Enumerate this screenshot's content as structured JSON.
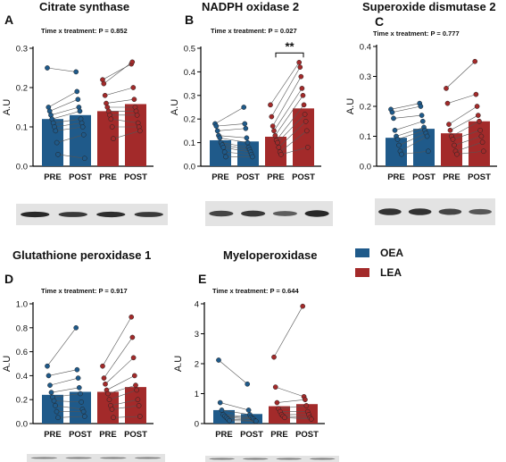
{
  "colors": {
    "OEA": "#1f5a8a",
    "LEA": "#a32a2a",
    "blot_bg": "#e3e3e3",
    "band": "#1d1d1d"
  },
  "legend": [
    {
      "key": "OEA",
      "label": "OEA"
    },
    {
      "key": "LEA",
      "label": "LEA"
    }
  ],
  "chart_data": [
    {
      "letter": "A",
      "title": "Citrate synthase",
      "stat": "Time x treatment:   P = 0.852",
      "type": "bar",
      "ylabel": "A.U",
      "ylim": [
        0,
        0.3
      ],
      "yticks": [
        "0.0",
        "0.1",
        "0.2",
        "0.3"
      ],
      "categories": [
        "PRE",
        "POST",
        "PRE",
        "POST"
      ],
      "group_of_bar": [
        "OEA",
        "OEA",
        "LEA",
        "LEA"
      ],
      "values": [
        0.12,
        0.13,
        0.14,
        0.158
      ],
      "pairs": [
        {
          "group": "OEA",
          "pre": [
            0.25,
            0.15,
            0.14,
            0.13,
            0.12,
            0.11,
            0.1,
            0.09,
            0.06,
            0.03
          ],
          "post": [
            0.24,
            0.19,
            0.17,
            0.15,
            0.14,
            0.12,
            0.11,
            0.1,
            0.08,
            0.02
          ]
        },
        {
          "group": "LEA",
          "pre": [
            0.22,
            0.21,
            0.18,
            0.16,
            0.15,
            0.14,
            0.13,
            0.12,
            0.1,
            0.07
          ],
          "post": [
            0.26,
            0.265,
            0.2,
            0.17,
            0.15,
            0.14,
            0.13,
            0.11,
            0.1,
            0.09
          ]
        }
      ],
      "annotation": null
    },
    {
      "letter": "B",
      "title": "NADPH oxidase 2",
      "stat": "Time x treatment:   P = 0.027",
      "type": "bar",
      "ylabel": "A.U",
      "ylim": [
        0,
        0.5
      ],
      "yticks": [
        "0.0",
        "0.1",
        "0.2",
        "0.3",
        "0.4",
        "0.5"
      ],
      "categories": [
        "PRE",
        "POST",
        "PRE",
        "POST"
      ],
      "group_of_bar": [
        "OEA",
        "OEA",
        "LEA",
        "LEA"
      ],
      "values": [
        0.11,
        0.105,
        0.125,
        0.245
      ],
      "pairs": [
        {
          "group": "OEA",
          "pre": [
            0.18,
            0.17,
            0.15,
            0.13,
            0.12,
            0.1,
            0.09,
            0.08,
            0.06,
            0.04
          ],
          "post": [
            0.25,
            0.18,
            0.16,
            0.12,
            0.1,
            0.08,
            0.07,
            0.06,
            0.05,
            0.04
          ]
        },
        {
          "group": "LEA",
          "pre": [
            0.26,
            0.21,
            0.17,
            0.15,
            0.13,
            0.11,
            0.1,
            0.08,
            0.06,
            0.05
          ],
          "post": [
            0.44,
            0.42,
            0.38,
            0.33,
            0.3,
            0.26,
            0.22,
            0.19,
            0.15,
            0.08
          ]
        }
      ],
      "annotation": "**"
    },
    {
      "letter": "C",
      "title": "Superoxide dismutase 2",
      "stat": "Time x treatment:   P = 0.777",
      "type": "bar",
      "ylabel": "A.U",
      "ylim": [
        0,
        0.4
      ],
      "yticks": [
        "0.0",
        "0.1",
        "0.2",
        "0.3",
        "0.4"
      ],
      "categories": [
        "PRE",
        "POST",
        "PRE",
        "POST"
      ],
      "group_of_bar": [
        "OEA",
        "OEA",
        "LEA",
        "LEA"
      ],
      "values": [
        0.095,
        0.125,
        0.11,
        0.15
      ],
      "pairs": [
        {
          "group": "OEA",
          "pre": [
            0.19,
            0.18,
            0.16,
            0.12,
            0.1,
            0.09,
            0.07,
            0.05,
            0.04
          ],
          "post": [
            0.21,
            0.2,
            0.17,
            0.15,
            0.13,
            0.12,
            0.11,
            0.1,
            0.05
          ]
        },
        {
          "group": "LEA",
          "pre": [
            0.26,
            0.21,
            0.14,
            0.12,
            0.1,
            0.09,
            0.07,
            0.05,
            0.04
          ],
          "post": [
            0.35,
            0.24,
            0.2,
            0.17,
            0.15,
            0.12,
            0.1,
            0.08,
            0.05
          ]
        }
      ],
      "annotation": null
    },
    {
      "letter": "D",
      "title": "Glutathione peroxidase 1",
      "stat": "Time x treatment:   P = 0.917",
      "type": "bar",
      "ylabel": "A.U",
      "ylim": [
        0,
        1.0
      ],
      "yticks": [
        "0.0",
        "0.2",
        "0.4",
        "0.6",
        "0.8",
        "1.0"
      ],
      "categories": [
        "PRE",
        "POST",
        "PRE",
        "POST"
      ],
      "group_of_bar": [
        "OEA",
        "OEA",
        "LEA",
        "LEA"
      ],
      "values": [
        0.24,
        0.265,
        0.265,
        0.305
      ],
      "pairs": [
        {
          "group": "OEA",
          "pre": [
            0.48,
            0.4,
            0.32,
            0.26,
            0.22,
            0.19,
            0.15,
            0.1,
            0.05
          ],
          "post": [
            0.8,
            0.45,
            0.38,
            0.3,
            0.25,
            0.18,
            0.12,
            0.1,
            0.06
          ]
        },
        {
          "group": "LEA",
          "pre": [
            0.48,
            0.38,
            0.33,
            0.28,
            0.25,
            0.2,
            0.15,
            0.12,
            0.05
          ],
          "post": [
            0.89,
            0.72,
            0.55,
            0.4,
            0.32,
            0.28,
            0.2,
            0.15,
            0.06
          ]
        }
      ],
      "annotation": null
    },
    {
      "letter": "E",
      "title": "Myeloperoxidase",
      "stat": "Time x treatment:   P = 0.644",
      "type": "bar",
      "ylabel": "A.U",
      "ylim": [
        0,
        4
      ],
      "yticks": [
        "0",
        "1",
        "2",
        "3",
        "4"
      ],
      "categories": [
        "PRE",
        "POST",
        "PRE",
        "POST"
      ],
      "group_of_bar": [
        "OEA",
        "OEA",
        "LEA",
        "LEA"
      ],
      "values": [
        0.45,
        0.32,
        0.58,
        0.65
      ],
      "pairs": [
        {
          "group": "OEA",
          "pre": [
            2.12,
            0.7,
            0.45,
            0.3,
            0.25,
            0.2,
            0.15,
            0.1
          ],
          "post": [
            1.32,
            0.45,
            0.3,
            0.22,
            0.18,
            0.15,
            0.1,
            0.08
          ]
        },
        {
          "group": "LEA",
          "pre": [
            2.22,
            1.22,
            0.7,
            0.5,
            0.4,
            0.3,
            0.25,
            0.2
          ],
          "post": [
            3.92,
            0.9,
            0.8,
            0.6,
            0.4,
            0.3,
            0.2,
            0.15
          ]
        }
      ],
      "annotation": null
    }
  ],
  "blots": [
    {
      "panel": "A",
      "intensity": [
        1.0,
        0.85,
        0.95,
        0.85
      ]
    },
    {
      "panel": "B",
      "intensity": [
        0.75,
        0.85,
        0.55,
        1.0
      ]
    },
    {
      "panel": "C",
      "intensity": [
        0.9,
        0.9,
        0.75,
        0.6
      ]
    },
    {
      "panel": "D",
      "intensity": [
        0.25,
        0.25,
        0.25,
        0.25
      ]
    },
    {
      "panel": "E",
      "intensity": [
        0.25,
        0.25,
        0.25,
        0.25
      ]
    }
  ]
}
